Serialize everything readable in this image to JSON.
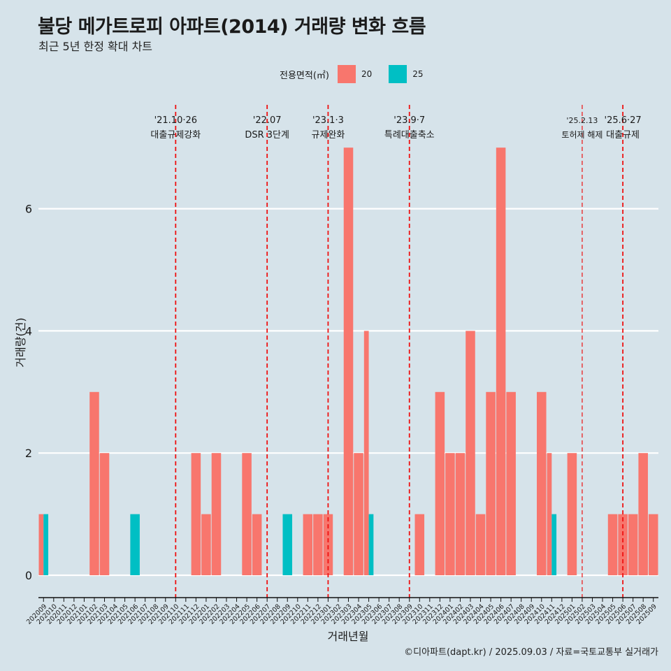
{
  "chart_data": {
    "type": "bar",
    "title": "불당 메가트로피 아파트(2014) 거래량 변화 흐름",
    "subtitle": "최근 5년 한정 확대 차트",
    "xlabel": "거래년월",
    "ylabel": "거래량(건)",
    "ylim": [
      0,
      7
    ],
    "yticks": [
      0,
      2,
      4,
      6
    ],
    "legend": {
      "title": "전용면적(㎡)",
      "position": "top-center",
      "entries": [
        {
          "name": "20",
          "color": "#f8766d"
        },
        {
          "name": "25",
          "color": "#00bfc4"
        }
      ]
    },
    "categories": [
      "202009",
      "202010",
      "202011",
      "202012",
      "202101",
      "202102",
      "202103",
      "202104",
      "202105",
      "202106",
      "202107",
      "202108",
      "202109",
      "202110",
      "202111",
      "202112",
      "202201",
      "202202",
      "202203",
      "202204",
      "202205",
      "202206",
      "202207",
      "202208",
      "202209",
      "202210",
      "202211",
      "202212",
      "202301",
      "202302",
      "202303",
      "202304",
      "202305",
      "202306",
      "202307",
      "202308",
      "202309",
      "202310",
      "202311",
      "202312",
      "202401",
      "202402",
      "202403",
      "202404",
      "202405",
      "202406",
      "202407",
      "202408",
      "202409",
      "202410",
      "202411",
      "202412",
      "202501",
      "202502",
      "202503",
      "202504",
      "202505",
      "202506",
      "202507",
      "202508",
      "202509"
    ],
    "series": [
      {
        "name": "20",
        "color": "#f8766d",
        "values": [
          1,
          0,
          0,
          0,
          0,
          3,
          2,
          0,
          0,
          0,
          0,
          0,
          0,
          0,
          0,
          2,
          1,
          2,
          0,
          0,
          2,
          1,
          0,
          0,
          0,
          0,
          1,
          1,
          1,
          0,
          7,
          2,
          4,
          0,
          0,
          0,
          0,
          1,
          0,
          3,
          2,
          2,
          4,
          1,
          3,
          7,
          3,
          0,
          0,
          3,
          2,
          0,
          2,
          0,
          0,
          0,
          1,
          1,
          1,
          2,
          1
        ]
      },
      {
        "name": "25",
        "color": "#00bfc4",
        "values": [
          1,
          0,
          0,
          0,
          0,
          0,
          0,
          0,
          0,
          1,
          0,
          0,
          0,
          0,
          0,
          0,
          0,
          0,
          0,
          0,
          0,
          0,
          0,
          0,
          1,
          0,
          0,
          0,
          0,
          0,
          0,
          0,
          1,
          0,
          0,
          0,
          0,
          0,
          0,
          0,
          0,
          0,
          0,
          0,
          0,
          0,
          0,
          0,
          0,
          0,
          1,
          0,
          0,
          0,
          0,
          0,
          0,
          0,
          0,
          0,
          0
        ]
      }
    ],
    "annotations": [
      {
        "at": "202110",
        "date": "'21.10·26",
        "label": "대출규제강화"
      },
      {
        "at": "202207",
        "date": "'22.07",
        "label": "DSR 3단계"
      },
      {
        "at": "202301",
        "date": "'23.1·3",
        "label": "규제완화"
      },
      {
        "at": "202309",
        "date": "'23.9·7",
        "label": "특례대출축소"
      },
      {
        "at": "202502",
        "date": "'25.2.13",
        "label": "토허제 해제"
      },
      {
        "at": "202506",
        "date": "'25.6·27",
        "label": "대출규제"
      }
    ],
    "caption": "©디아파트(dapt.kr) / 2025.09.03 / 자료=국토교통부 실거래가"
  }
}
